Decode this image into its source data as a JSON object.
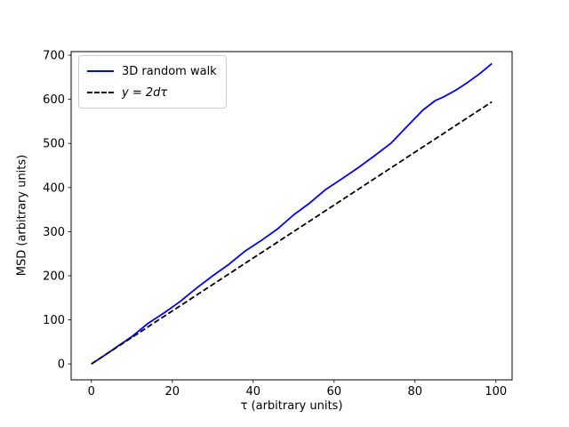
{
  "chart_data": {
    "type": "line",
    "title": "",
    "xlabel": "τ (arbitrary units)",
    "ylabel": "MSD (arbitrary units)",
    "xlim": [
      -5,
      104
    ],
    "ylim": [
      -36,
      708
    ],
    "x_ticks": [
      0,
      20,
      40,
      60,
      80,
      100
    ],
    "y_ticks": [
      0,
      100,
      200,
      300,
      400,
      500,
      600,
      700
    ],
    "grid": false,
    "legend_position": "upper left",
    "colors": {
      "walk_line": "#0000ff",
      "reference_line": "#000000",
      "legend_edge": "#cccccc",
      "axes_edge": "#000000"
    },
    "series": [
      {
        "name": "3D random walk",
        "color": "#0000ff",
        "style": "solid",
        "italic": false,
        "x": [
          0,
          3,
          6,
          10,
          14,
          18,
          22,
          26,
          30,
          34,
          38,
          42,
          46,
          50,
          54,
          58,
          62,
          66,
          70,
          74,
          78,
          82,
          85,
          87,
          90,
          93,
          96,
          99
        ],
        "y": [
          0,
          18,
          37,
          62,
          92,
          116,
          142,
          172,
          200,
          226,
          256,
          280,
          306,
          338,
          365,
          396,
          420,
          445,
          472,
          500,
          538,
          576,
          597,
          605,
          620,
          638,
          658,
          681
        ]
      },
      {
        "name": "y = 2dτ",
        "color": "#000000",
        "style": "dashed",
        "italic": true,
        "x": [
          0,
          99
        ],
        "y": [
          0,
          594
        ]
      }
    ]
  }
}
